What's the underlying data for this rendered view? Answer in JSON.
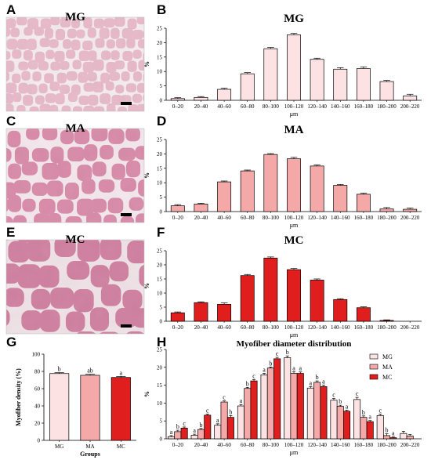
{
  "panel_letters": [
    "A",
    "B",
    "C",
    "D",
    "E",
    "F",
    "G",
    "H"
  ],
  "micrographs": [
    {
      "label": "MG",
      "fill": "#e7b9c9",
      "gap": "#f4ecef",
      "cell_size": "small"
    },
    {
      "label": "MA",
      "fill": "#d88aa8",
      "gap": "#f3e7ec",
      "cell_size": "medium"
    },
    {
      "label": "MC",
      "fill": "#cf7f9f",
      "gap": "#efe2e6",
      "cell_size": "large"
    }
  ],
  "colors": {
    "MG": "#fde2e4",
    "MA": "#f4a9a8",
    "MC": "#e01e1e"
  },
  "chart_data": [
    {
      "type": "bar",
      "title": "MG",
      "xlabel": "μm",
      "ylabel": "%",
      "ylim": [
        0,
        25
      ],
      "yticks": [
        0,
        5,
        10,
        15,
        20,
        25
      ],
      "categories": [
        "0–20",
        "20–40",
        "40–60",
        "60–80",
        "80–100",
        "100–120",
        "120–140",
        "140–160",
        "160–180",
        "180–200",
        "200–220"
      ],
      "series": [
        {
          "values": [
            0.6,
            1.0,
            3.8,
            9.2,
            17.9,
            22.7,
            14.2,
            10.8,
            11.0,
            6.5,
            1.5
          ],
          "errors": [
            0.3,
            0.3,
            0.4,
            0.4,
            0.4,
            0.5,
            0.4,
            0.5,
            0.6,
            0.4,
            0.6
          ]
        }
      ],
      "color": "#fde2e4"
    },
    {
      "type": "bar",
      "title": "MA",
      "xlabel": "μm",
      "ylabel": "%",
      "ylim": [
        0,
        25
      ],
      "yticks": [
        0,
        5,
        10,
        15,
        20,
        25
      ],
      "categories": [
        "0–20",
        "20–40",
        "40–60",
        "60–80",
        "80–100",
        "100–120",
        "120–140",
        "140–160",
        "160–180",
        "180–200",
        "200–220"
      ],
      "series": [
        {
          "values": [
            2.0,
            2.6,
            10.3,
            14.1,
            19.8,
            18.3,
            15.8,
            9.1,
            6.0,
            0.9,
            0.8
          ],
          "errors": [
            0.4,
            0.3,
            0.3,
            0.3,
            0.3,
            0.5,
            0.4,
            0.3,
            0.4,
            0.5,
            0.4
          ]
        }
      ],
      "color": "#f4a9a8"
    },
    {
      "type": "bar",
      "title": "MC",
      "xlabel": "μm",
      "ylabel": "%",
      "ylim": [
        0,
        25
      ],
      "yticks": [
        0,
        5,
        10,
        15,
        20,
        25
      ],
      "categories": [
        "0–20",
        "20–40",
        "40–60",
        "60–80",
        "80–100",
        "100–120",
        "120–140",
        "140–160",
        "160–180",
        "180–200",
        "200–220"
      ],
      "series": [
        {
          "values": [
            3.0,
            6.6,
            6.0,
            16.2,
            22.4,
            18.3,
            14.6,
            7.7,
            4.8,
            0.3,
            0.0
          ],
          "errors": [
            0.3,
            0.3,
            0.5,
            0.4,
            0.4,
            0.4,
            0.4,
            0.3,
            0.3,
            0.2,
            0.0
          ]
        }
      ],
      "color": "#e01e1e"
    },
    {
      "type": "bar",
      "title": "",
      "xlabel": "Groups",
      "ylabel": "Myofiber density (%)",
      "ylim": [
        0,
        100
      ],
      "yticks": [
        0,
        20,
        40,
        60,
        80,
        100
      ],
      "categories": [
        "MG",
        "MA",
        "MC"
      ],
      "series": [
        {
          "values": [
            77.5,
            75.5,
            73.0
          ],
          "errors": [
            1.0,
            1.2,
            1.2
          ],
          "letters": [
            "b",
            "ab",
            "a"
          ]
        }
      ],
      "colors": [
        "#fde2e4",
        "#f4a9a8",
        "#e01e1e"
      ]
    },
    {
      "type": "bar",
      "title": "Myofiber diameter distribution",
      "xlabel": "μm",
      "ylabel": "%",
      "ylim": [
        0,
        25
      ],
      "yticks": [
        0,
        5,
        10,
        15,
        20,
        25
      ],
      "legend": "top-right",
      "categories": [
        "0–20",
        "20–40",
        "40–60",
        "60–80",
        "80–100",
        "100–120",
        "120–140",
        "140–160",
        "160–180",
        "180–200",
        "200–220"
      ],
      "series": [
        {
          "name": "MG",
          "values": [
            0.6,
            1.0,
            3.8,
            9.2,
            17.9,
            22.7,
            14.2,
            10.8,
            11.0,
            6.5,
            1.5
          ],
          "errors": [
            0.3,
            0.3,
            0.4,
            0.4,
            0.4,
            0.5,
            0.4,
            0.5,
            0.6,
            0.4,
            0.6
          ],
          "letters": [
            "a",
            "a",
            "a",
            "a",
            "a",
            "b",
            "a",
            "c",
            "c",
            "c",
            ""
          ]
        },
        {
          "name": "MA",
          "values": [
            2.0,
            2.6,
            10.3,
            14.1,
            19.8,
            18.3,
            15.8,
            9.1,
            6.0,
            0.9,
            0.8
          ],
          "errors": [
            0.4,
            0.3,
            0.3,
            0.3,
            0.3,
            0.5,
            0.4,
            0.3,
            0.4,
            0.5,
            0.4
          ],
          "letters": [
            "b",
            "b",
            "c",
            "b",
            "b",
            "a",
            "b",
            "b",
            "b",
            "b",
            ""
          ]
        },
        {
          "name": "MC",
          "values": [
            3.0,
            6.6,
            6.0,
            16.2,
            22.4,
            18.3,
            14.6,
            7.7,
            4.8,
            0.3,
            0.0
          ],
          "errors": [
            0.3,
            0.3,
            0.5,
            0.4,
            0.4,
            0.4,
            0.4,
            0.3,
            0.3,
            0.2,
            0.0
          ],
          "letters": [
            "c",
            "c",
            "b",
            "c",
            "c",
            "a",
            "a",
            "a",
            "a",
            "a",
            ""
          ]
        }
      ],
      "colors": [
        "#fde2e4",
        "#f4a9a8",
        "#e01e1e"
      ]
    }
  ]
}
